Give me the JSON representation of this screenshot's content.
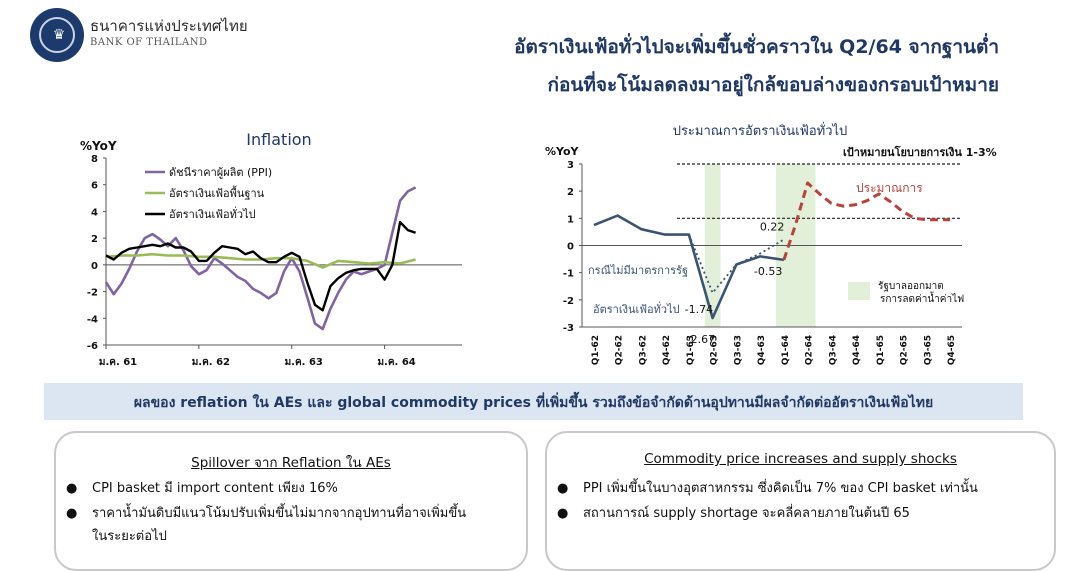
{
  "header": {
    "org_name_th": "ธนาคารแห่งประเทศไทย",
    "org_name_en": "BANK OF THAILAND",
    "headline_line1": "อัตราเงินเฟ้อทั่วไปจะเพิ่มขึ้นชั่วคราวใน Q2/64 จากฐานต่ำ",
    "headline_line2": "ก่อนที่จะโน้มลดลงมาอยู่ใกล้ขอบล่างของกรอบเป้าหมาย"
  },
  "chart_data": [
    {
      "type": "line",
      "title": "Inflation",
      "ylabel": "%YoY",
      "ylim": [
        -6,
        8
      ],
      "yticks": [
        "8",
        "6",
        "4",
        "2",
        "0",
        "-2",
        "-4",
        "-6"
      ],
      "xlim": [
        0,
        46
      ],
      "xticks": [
        {
          "at": 0,
          "label": "ม.ค. 61"
        },
        {
          "at": 12,
          "label": "ม.ค. 62"
        },
        {
          "at": 24,
          "label": "ม.ค. 63"
        },
        {
          "at": 36,
          "label": "ม.ค. 64"
        }
      ],
      "legend_position": "top-left",
      "series": [
        {
          "name": "ดัชนีราคาผู้ผลิต (PPI)",
          "color": "#8064a2",
          "x": [
            0,
            1,
            2,
            3,
            4,
            5,
            6,
            7,
            8,
            9,
            10,
            11,
            12,
            13,
            14,
            15,
            16,
            17,
            18,
            19,
            20,
            21,
            22,
            23,
            24,
            25,
            26,
            27,
            28,
            29,
            30,
            31,
            32,
            33,
            34,
            35,
            36,
            37,
            38,
            39,
            40
          ],
          "values": [
            -1.3,
            -2.2,
            -1.4,
            -0.3,
            1.0,
            2.0,
            2.3,
            1.9,
            1.4,
            2.0,
            1.1,
            -0.1,
            -0.7,
            -0.4,
            0.5,
            0.1,
            -0.4,
            -0.9,
            -1.2,
            -1.8,
            -2.1,
            -2.5,
            -2.1,
            -0.5,
            0.5,
            -0.5,
            -2.4,
            -4.4,
            -4.8,
            -3.3,
            -2.1,
            -1.1,
            -0.5,
            -0.7,
            -0.5,
            -0.3,
            0.0,
            2.4,
            4.8,
            5.5,
            5.8
          ]
        },
        {
          "name": "อัตราเงินเฟ้อพื้นฐาน",
          "color": "#9bbb59",
          "x": [
            0,
            2,
            4,
            6,
            8,
            10,
            12,
            14,
            16,
            18,
            20,
            22,
            24,
            26,
            28,
            30,
            32,
            34,
            36,
            38,
            40
          ],
          "values": [
            0.6,
            0.7,
            0.7,
            0.8,
            0.7,
            0.7,
            0.6,
            0.6,
            0.5,
            0.4,
            0.4,
            0.5,
            0.5,
            0.3,
            -0.2,
            0.3,
            0.2,
            0.1,
            0.2,
            0.1,
            0.4
          ]
        },
        {
          "name": "อัตราเงินเฟ้อทั่วไป",
          "color": "#000000",
          "x": [
            0,
            1,
            2,
            3,
            4,
            5,
            6,
            7,
            8,
            9,
            10,
            11,
            12,
            13,
            14,
            15,
            16,
            17,
            18,
            19,
            20,
            21,
            22,
            23,
            24,
            25,
            26,
            27,
            28,
            29,
            30,
            31,
            32,
            33,
            34,
            35,
            36,
            37,
            38,
            39,
            40
          ],
          "values": [
            0.7,
            0.4,
            0.9,
            1.2,
            1.3,
            1.4,
            1.5,
            1.4,
            1.6,
            1.3,
            1.3,
            1.0,
            0.3,
            0.3,
            0.9,
            1.4,
            1.3,
            1.2,
            0.8,
            1.0,
            0.5,
            0.2,
            0.2,
            0.6,
            0.9,
            0.6,
            -1.3,
            -3.0,
            -3.4,
            -1.6,
            -1.0,
            -0.6,
            -0.4,
            -0.3,
            -0.3,
            -0.3,
            -1.1,
            0.0,
            3.2,
            2.6,
            2.4
          ]
        }
      ]
    },
    {
      "type": "line",
      "title": "ประมาณการอัตราเงินเฟ้อทั่วไป",
      "ylabel": "%YoY",
      "ylim": [
        -3,
        3
      ],
      "yticks": [
        "3",
        "2",
        "1",
        "0",
        "-1",
        "-2",
        "-3"
      ],
      "categories": [
        "Q1-62",
        "Q2-62",
        "Q3-62",
        "Q4-62",
        "Q1-63",
        "Q2-63",
        "Q3-63",
        "Q4-63",
        "Q1-64",
        "Q2-64",
        "Q3-64",
        "Q4-64",
        "Q1-65",
        "Q2-65",
        "Q3-65",
        "Q4-65"
      ],
      "target_band": [
        1,
        3
      ],
      "target_label": "เป้าหมายนโยบายการเงิน 1-3%",
      "shaded_note": "รัฐบาลออกมาตรการลดค่าน้ำค่าไฟ",
      "series": [
        {
          "name": "อัตราเงินเฟ้อทั่วไป",
          "color": "#3a5472",
          "style": "solid",
          "x": [
            0,
            1,
            2,
            3,
            4,
            5,
            6,
            7,
            8
          ],
          "values": [
            0.75,
            1.1,
            0.6,
            0.4,
            0.4,
            -2.67,
            -0.7,
            -0.4,
            -0.53
          ]
        },
        {
          "name": "กรณีไม่มีมาตรการรัฐ",
          "color": "#3a5472",
          "style": "dotted",
          "x": [
            4,
            5,
            6,
            7,
            8
          ],
          "values": [
            0.4,
            -1.74,
            -0.7,
            -0.3,
            0.22
          ]
        },
        {
          "name": "ประมาณการ",
          "color": "#b8433b",
          "style": "dashed",
          "x": [
            8,
            8.5,
            9,
            9.5,
            10,
            10.5,
            11,
            11.5,
            12,
            12.5,
            13,
            13.5,
            14,
            14.5,
            15
          ],
          "values": [
            -0.53,
            0.8,
            2.3,
            1.9,
            1.55,
            1.45,
            1.5,
            1.65,
            1.9,
            1.6,
            1.25,
            1.0,
            0.95,
            0.95,
            0.95
          ]
        }
      ],
      "annotations": [
        {
          "text": "-1.74",
          "x": 5,
          "y": -1.74
        },
        {
          "text": "-2.67",
          "x": 5,
          "y": -2.67
        },
        {
          "text": "0.22",
          "x": 8,
          "y": 0.22
        },
        {
          "text": "-0.53",
          "x": 8,
          "y": -0.53
        }
      ]
    }
  ],
  "banner": {
    "text": "ผลของ reflation ใน AEs และ global commodity prices ที่เพิ่มขึ้น รวมถึงข้อจำกัดด้านอุปทานมีผลจำกัดต่ออัตราเงินเฟ้อไทย"
  },
  "cards": {
    "left": {
      "title": "Spillover จาก Reflation ใน AEs",
      "bullet1": "CPI basket มี import content เพียง 16%",
      "bullet2_line1": "ราคาน้ำมันดิบมีแนวโน้มปรับเพิ่มขึ้นไม่มากจากอุปทานที่อาจเพิ่มขึ้น",
      "bullet2_line2": "ในระยะต่อไป"
    },
    "right": {
      "title": "Commodity price increases and supply shocks",
      "bullet1": "PPI เพิ่มขึ้นในบางอุตสาหกรรม ซึ่งคิดเป็น 7% ของ CPI basket เท่านั้น",
      "bullet2": "สถานการณ์ supply shortage จะคลี่คลายภายในต้นปี 65"
    }
  }
}
